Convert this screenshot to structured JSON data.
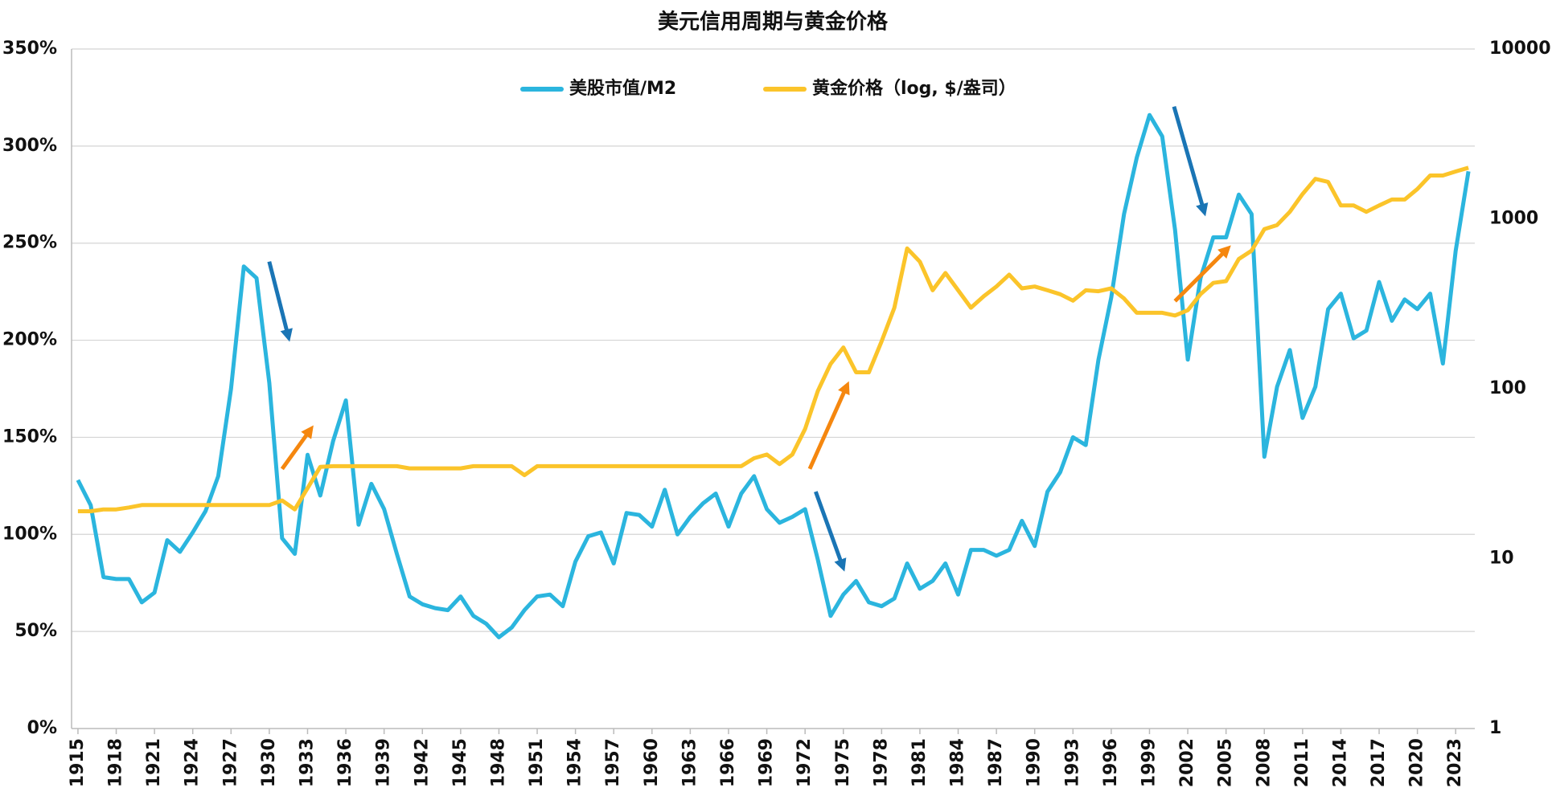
{
  "chart_data": {
    "type": "line",
    "title": "美元信用周期与黄金价格",
    "legend": "top",
    "x": [
      1915,
      1916,
      1917,
      1918,
      1919,
      1920,
      1921,
      1922,
      1923,
      1924,
      1925,
      1926,
      1927,
      1928,
      1929,
      1930,
      1931,
      1932,
      1933,
      1934,
      1935,
      1936,
      1937,
      1938,
      1939,
      1940,
      1941,
      1942,
      1943,
      1944,
      1945,
      1946,
      1947,
      1948,
      1949,
      1950,
      1951,
      1952,
      1953,
      1954,
      1955,
      1956,
      1957,
      1958,
      1959,
      1960,
      1961,
      1962,
      1963,
      1964,
      1965,
      1966,
      1967,
      1968,
      1969,
      1970,
      1971,
      1972,
      1973,
      1974,
      1975,
      1976,
      1977,
      1978,
      1979,
      1980,
      1981,
      1982,
      1983,
      1984,
      1985,
      1986,
      1987,
      1988,
      1989,
      1990,
      1991,
      1992,
      1993,
      1994,
      1995,
      1996,
      1997,
      1998,
      1999,
      2000,
      2001,
      2002,
      2003,
      2004,
      2005,
      2006,
      2007,
      2008,
      2009,
      2010,
      2011,
      2012,
      2013,
      2014,
      2015,
      2016,
      2017,
      2018,
      2019,
      2020,
      2021,
      2022,
      2023,
      2024
    ],
    "xlim": [
      1914.5,
      2024.5
    ],
    "xticks": [
      1915,
      1918,
      1921,
      1924,
      1927,
      1930,
      1933,
      1936,
      1939,
      1942,
      1945,
      1948,
      1951,
      1954,
      1957,
      1960,
      1963,
      1966,
      1969,
      1972,
      1975,
      1978,
      1981,
      1984,
      1987,
      1990,
      1993,
      1996,
      1999,
      2002,
      2005,
      2008,
      2011,
      2014,
      2017,
      2020,
      2023
    ],
    "ylim": [
      0,
      350
    ],
    "yticks": [
      {
        "value": 0,
        "label": "0%"
      },
      {
        "value": 50,
        "label": "50%"
      },
      {
        "value": 100,
        "label": "100%"
      },
      {
        "value": 150,
        "label": "150%"
      },
      {
        "value": 200,
        "label": "200%"
      },
      {
        "value": 250,
        "label": "250%"
      },
      {
        "value": 300,
        "label": "300%"
      },
      {
        "value": 350,
        "label": "350%"
      }
    ],
    "y2lim": [
      1,
      10000
    ],
    "y2log": true,
    "y2ticks": [
      1,
      10,
      100,
      1000,
      10000
    ],
    "grid": true,
    "series": [
      {
        "name": "美股市值/M2",
        "color": "#2bb5de",
        "values": [
          128,
          115,
          78,
          77,
          77,
          65,
          70,
          97,
          91,
          101,
          112,
          130,
          175,
          238,
          232,
          178,
          98,
          90,
          141,
          120,
          148,
          169,
          105,
          126,
          113,
          90,
          68,
          64,
          62,
          61,
          68,
          58,
          54,
          47,
          52,
          61,
          68,
          69,
          63,
          86,
          99,
          101,
          85,
          111,
          110,
          104,
          123,
          100,
          109,
          116,
          121,
          104,
          121,
          130,
          113,
          106,
          109,
          113,
          87,
          58,
          69,
          76,
          65,
          63,
          67,
          85,
          72,
          76,
          85,
          69,
          92,
          92,
          89,
          92,
          107,
          94,
          122,
          132,
          150,
          146,
          190,
          222,
          265,
          294,
          316,
          305,
          257,
          190,
          232,
          253,
          253,
          275,
          265,
          140,
          176,
          195,
          160,
          176,
          216,
          224,
          201,
          205,
          230,
          210,
          221,
          216,
          224,
          188,
          246,
          287
        ]
      },
      {
        "name": "黄金价格（log, $/盎司）",
        "color": "#fbc42a",
        "axis": "y2",
        "values": [
          19,
          19,
          19.5,
          19.5,
          20,
          20.67,
          20.67,
          20.67,
          20.67,
          20.67,
          20.67,
          20.67,
          20.67,
          20.67,
          20.67,
          20.67,
          22,
          19.5,
          26,
          34.7,
          35,
          35,
          35,
          35,
          35,
          35,
          34,
          34,
          34,
          34,
          34,
          35,
          35,
          35,
          35,
          31,
          35,
          35,
          35,
          35,
          35,
          35,
          35,
          35,
          35,
          35,
          35,
          35,
          35,
          35,
          35,
          35,
          35,
          39,
          41,
          36,
          41,
          58,
          97,
          140,
          175,
          125,
          125,
          190,
          300,
          670,
          560,
          380,
          480,
          380,
          300,
          350,
          400,
          470,
          390,
          400,
          380,
          360,
          330,
          380,
          375,
          390,
          340,
          280,
          280,
          280,
          270,
          290,
          360,
          420,
          430,
          580,
          650,
          870,
          920,
          1100,
          1400,
          1720,
          1650,
          1200,
          1200,
          1100,
          1200,
          1300,
          1300,
          1500,
          1800,
          1800,
          1900,
          2000
        ]
      }
    ]
  }
}
